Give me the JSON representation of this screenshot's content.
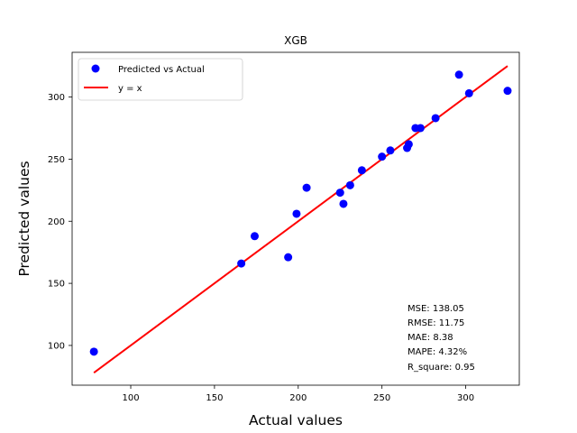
{
  "chart_data": {
    "type": "scatter",
    "title": "XGB",
    "xlabel": "Actual values",
    "ylabel": "Predicted values",
    "xlim": [
      65,
      332
    ],
    "ylim": [
      68,
      336
    ],
    "xticks": [
      100,
      150,
      200,
      250,
      300
    ],
    "yticks": [
      100,
      150,
      200,
      250,
      300
    ],
    "grid": false,
    "legend_position": "top-left",
    "series": [
      {
        "name": "Predicted vs Actual",
        "type": "scatter",
        "color": "#0000ff",
        "points": [
          [
            78,
            95
          ],
          [
            166,
            166
          ],
          [
            174,
            188
          ],
          [
            194,
            171
          ],
          [
            199,
            206
          ],
          [
            205,
            227
          ],
          [
            225,
            223
          ],
          [
            227,
            214
          ],
          [
            231,
            229
          ],
          [
            238,
            241
          ],
          [
            250,
            252
          ],
          [
            255,
            257
          ],
          [
            265,
            259
          ],
          [
            266,
            262
          ],
          [
            270,
            275
          ],
          [
            273,
            275
          ],
          [
            282,
            283
          ],
          [
            296,
            318
          ],
          [
            302,
            303
          ],
          [
            325,
            305
          ]
        ]
      },
      {
        "name": "y = x",
        "type": "line",
        "color": "#ff0000",
        "points": [
          [
            78,
            78
          ],
          [
            325,
            325
          ]
        ]
      }
    ],
    "metrics": [
      "MSE: 138.05",
      "RMSE: 11.75",
      "MAE: 8.38",
      "MAPE: 4.32%",
      "R_square: 0.95"
    ]
  }
}
